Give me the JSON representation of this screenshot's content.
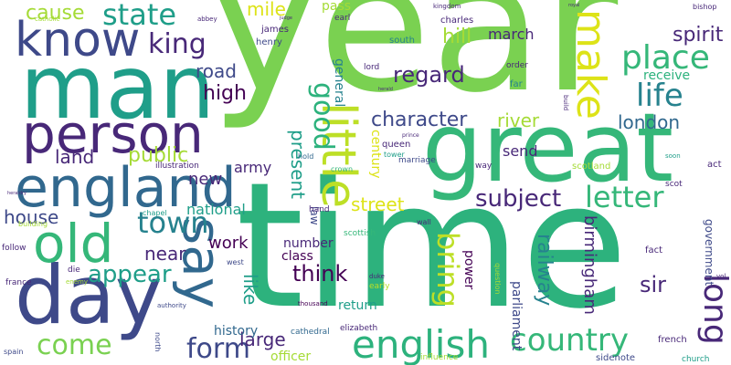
{
  "words": {
    "year": "year",
    "time": "time",
    "great": "great",
    "man": "man",
    "person": "person",
    "england": "england",
    "know": "know",
    "day": "day",
    "old": "old",
    "say": "say",
    "little": "little",
    "make": "make",
    "place": "place",
    "state": "state",
    "cause": "cause",
    "king": "king",
    "life": "life",
    "english": "english",
    "country": "country",
    "long": "long",
    "bring": "bring",
    "letter": "letter",
    "subject": "subject",
    "good": "good",
    "town": "town",
    "form": "form",
    "come": "come",
    "appear": "appear",
    "character": "character",
    "regard": "regard",
    "spirit": "spirit",
    "hill": "hill",
    "mile": "mile",
    "high": "high",
    "road": "road",
    "land": "land",
    "public": "public",
    "river": "river",
    "london": "london",
    "birmingham": "birmingham",
    "railway": "railway",
    "sir": "sir",
    "think": "think",
    "street": "street",
    "present": "present",
    "house": "house",
    "near": "near",
    "work": "work",
    "like": "like",
    "large": "large",
    "army": "army",
    "new": "new",
    "national": "national",
    "march": "march",
    "pass": "pass",
    "receive": "receive",
    "send": "send",
    "history": "history",
    "officer": "officer",
    "parliament": "parliament",
    "government": "government",
    "power": "power",
    "number": "number",
    "class": "class",
    "return": "return",
    "century": "century",
    "general": "general",
    "law": "law",
    "james": "james",
    "henry": "henry",
    "charles": "charles",
    "south": "south",
    "earl": "earl",
    "far": "far",
    "order": "order",
    "lord": "lord",
    "queen": "queen",
    "marriage": "marriage",
    "tower": "tower",
    "scotland": "scotland",
    "scot": "scot",
    "act": "act",
    "soon": "soon",
    "way": "way",
    "fact": "fact",
    "french": "french",
    "church": "church",
    "sidenote": "sidenote",
    "influence": "influence",
    "elizabeth": "elizabeth",
    "cathedral": "cathedral",
    "thousand": "thousand",
    "early": "early",
    "duke": "duke",
    "question": "question",
    "scottish": "scottish",
    "wall": "wall",
    "hand": "hand",
    "crown": "crown",
    "hold": "hold",
    "illustration": "illustration",
    "chapel": "chapel",
    "building": "building",
    "follow": "follow",
    "die": "die",
    "enemy": "enemy",
    "france": "france",
    "spain": "spain",
    "north": "north",
    "authority": "authority",
    "west": "west",
    "catholic": "catholic",
    "abbey": "abbey",
    "kingdom": "kingdom",
    "bishop": "bishop",
    "build": "build",
    "royal": "royal",
    "vol": "vol",
    "prince": "prince",
    "judge": "judge",
    "heraldry": "heraldry",
    "herald": "herald"
  },
  "palette": {
    "green": "#7ad151",
    "teal": "#35b779",
    "jade": "#2db27d",
    "sea": "#1f9e89",
    "cyan": "#26828e",
    "blue": "#31688e",
    "navy": "#3e4989",
    "indigo": "#482878",
    "purple": "#440154",
    "yellow": "#bddf26",
    "lemon": "#dde318",
    "lime": "#a5db36",
    "background": "#ffffff"
  }
}
